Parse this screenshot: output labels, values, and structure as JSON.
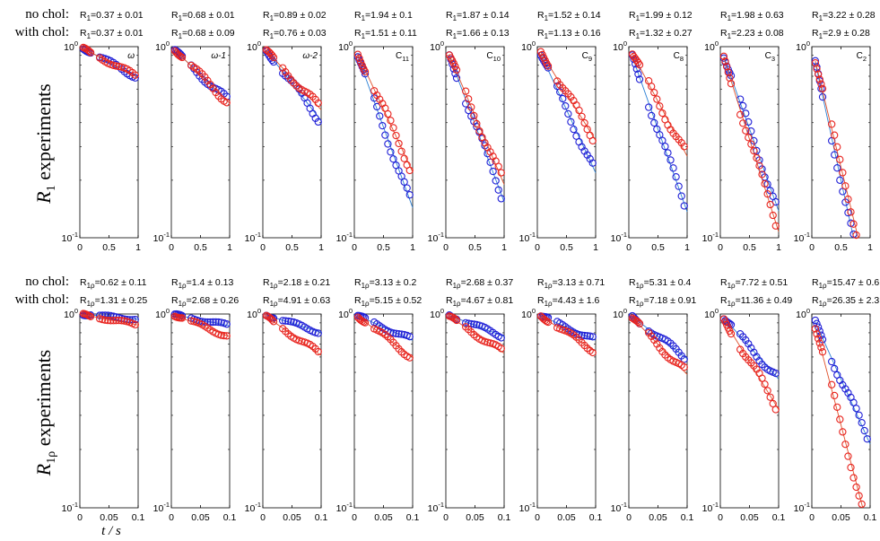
{
  "colors": {
    "no_chol": "#1f1fd6",
    "with_chol": "#e8231e",
    "fit_no_chol": "#2a7fd4",
    "fit_with_chol": "#e0502a"
  },
  "rows": [
    {
      "row_label_a": "no chol:",
      "row_label_b": "with chol:",
      "ylabel_main": "R",
      "ylabel_sub": "1",
      "ylabel_rest": " experiments"
    },
    {
      "row_label_a": "no chol:",
      "row_label_b": "with chol:",
      "ylabel_main": "R",
      "ylabel_sub": "1ρ",
      "ylabel_rest": " experiments"
    }
  ],
  "xaxis_label": "t / s",
  "chart_data": [
    {
      "type": "scatter",
      "experiment": "R1",
      "yscale": "log",
      "ylim": [
        0.1,
        1
      ],
      "xlim": [
        0,
        1
      ],
      "xticks": [
        "0",
        "0.5",
        "1"
      ],
      "yticks": [
        "10^-1",
        "10^0"
      ],
      "panels": [
        {
          "label": "ω",
          "rate_no_chol": "R1=0.37 ± 0.01",
          "rate_with_chol": "R1=0.37 ± 0.01",
          "k_no": 0.37,
          "k_with": 0.37
        },
        {
          "label": "ω-1",
          "rate_no_chol": "R1=0.68 ± 0.01",
          "rate_with_chol": "R1=0.68 ± 0.09",
          "k_no": 0.68,
          "k_with": 0.68
        },
        {
          "label": "ω-2",
          "rate_no_chol": "R1=0.89 ± 0.02",
          "rate_with_chol": "R1=0.76 ± 0.03",
          "k_no": 0.89,
          "k_with": 0.76
        },
        {
          "label": "C11",
          "rate_no_chol": "R1=1.94 ± 0.1",
          "rate_with_chol": "R1=1.51 ± 0.11",
          "k_no": 1.94,
          "k_with": 1.51
        },
        {
          "label": "C10",
          "rate_no_chol": "R1=1.87 ± 0.14",
          "rate_with_chol": "R1=1.66 ± 0.13",
          "k_no": 1.87,
          "k_with": 1.66
        },
        {
          "label": "C9",
          "rate_no_chol": "R1=1.52 ± 0.14",
          "rate_with_chol": "R1=1.13 ± 0.16",
          "k_no": 1.52,
          "k_with": 1.13
        },
        {
          "label": "C8",
          "rate_no_chol": "R1=1.99 ± 0.12",
          "rate_with_chol": "R1=1.32 ± 0.27",
          "k_no": 1.99,
          "k_with": 1.32
        },
        {
          "label": "C3",
          "rate_no_chol": "R1=1.98 ± 0.63",
          "rate_with_chol": "R1=2.23 ± 0.08",
          "k_no": 1.98,
          "k_with": 2.23
        },
        {
          "label": "C2",
          "rate_no_chol": "R1=3.22 ± 0.28",
          "rate_with_chol": "R1=2.9 ± 0.28",
          "k_no": 3.22,
          "k_with": 2.9
        }
      ]
    },
    {
      "type": "scatter",
      "experiment": "R1ρ",
      "yscale": "log",
      "ylim": [
        0.1,
        1
      ],
      "xlim": [
        0,
        0.1
      ],
      "xticks": [
        "0",
        "0.05",
        "0.1"
      ],
      "yticks": [
        "10^-1",
        "10^0"
      ],
      "panels": [
        {
          "label": "",
          "rate_no_chol": "R1ρ=0.62 ± 0.11",
          "rate_with_chol": "R1ρ=1.31 ± 0.25",
          "k_no": 0.62,
          "k_with": 1.31
        },
        {
          "label": "",
          "rate_no_chol": "R1ρ=1.4 ± 0.13",
          "rate_with_chol": "R1ρ=2.68 ± 0.26",
          "k_no": 1.4,
          "k_with": 2.68
        },
        {
          "label": "",
          "rate_no_chol": "R1ρ=2.18 ± 0.21",
          "rate_with_chol": "R1ρ=4.91 ± 0.63",
          "k_no": 2.18,
          "k_with": 4.91
        },
        {
          "label": "",
          "rate_no_chol": "R1ρ=3.13 ± 0.2",
          "rate_with_chol": "R1ρ=5.15 ± 0.52",
          "k_no": 3.13,
          "k_with": 5.15
        },
        {
          "label": "",
          "rate_no_chol": "R1ρ=2.68 ± 0.37",
          "rate_with_chol": "R1ρ=4.67 ± 0.81",
          "k_no": 2.68,
          "k_with": 4.67
        },
        {
          "label": "",
          "rate_no_chol": "R1ρ=3.13 ± 0.71",
          "rate_with_chol": "R1ρ=4.43 ± 1.6",
          "k_no": 3.13,
          "k_with": 4.43
        },
        {
          "label": "",
          "rate_no_chol": "R1ρ=5.31 ± 0.4",
          "rate_with_chol": "R1ρ=7.18 ± 0.91",
          "k_no": 5.31,
          "k_with": 7.18
        },
        {
          "label": "",
          "rate_no_chol": "R1ρ=7.72 ± 0.51",
          "rate_with_chol": "R1ρ=11.36 ± 0.49",
          "k_no": 7.72,
          "k_with": 11.36
        },
        {
          "label": "",
          "rate_no_chol": "R1ρ=15.47 ± 0.6",
          "rate_with_chol": "R1ρ=26.35 ± 2.3",
          "k_no": 15.47,
          "k_with": 26.35
        }
      ]
    }
  ]
}
